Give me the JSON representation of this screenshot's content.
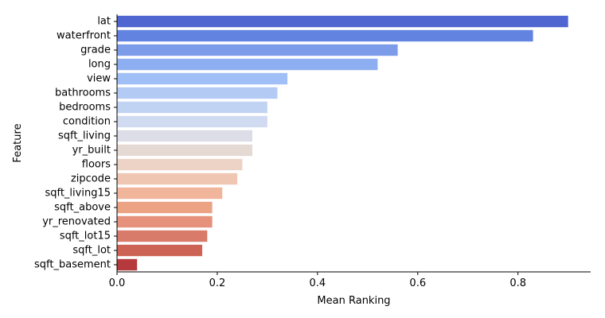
{
  "chart_data": {
    "type": "bar",
    "orientation": "horizontal",
    "title": "",
    "xlabel": "Mean Ranking",
    "ylabel": "Feature",
    "xlim": [
      0,
      0.945
    ],
    "x_ticks": [
      "0.0",
      "0.2",
      "0.4",
      "0.6",
      "0.8"
    ],
    "x_tick_values": [
      0,
      0.2,
      0.4,
      0.6,
      0.8
    ],
    "grid": false,
    "colormap": "coolwarm",
    "categories": [
      "lat",
      "waterfront",
      "grade",
      "long",
      "view",
      "bathrooms",
      "bedrooms",
      "condition",
      "sqft_living",
      "yr_built",
      "floors",
      "zipcode",
      "sqft_living15",
      "sqft_above",
      "yr_renovated",
      "sqft_lot15",
      "sqft_lot",
      "sqft_basement"
    ],
    "values": [
      0.9,
      0.83,
      0.56,
      0.52,
      0.34,
      0.32,
      0.3,
      0.3,
      0.27,
      0.27,
      0.25,
      0.24,
      0.21,
      0.19,
      0.19,
      0.18,
      0.17,
      0.04
    ],
    "colors": [
      "#4f66d0",
      "#6283e0",
      "#7c9be8",
      "#8daef0",
      "#a0bff6",
      "#b3cbf4",
      "#c1d3f2",
      "#d0daf0",
      "#dcdde6",
      "#e4d9d3",
      "#ecd3c6",
      "#efc6b2",
      "#f0b59a",
      "#eca384",
      "#e5917b",
      "#d97b6a",
      "#cc6355",
      "#b6393d"
    ]
  }
}
